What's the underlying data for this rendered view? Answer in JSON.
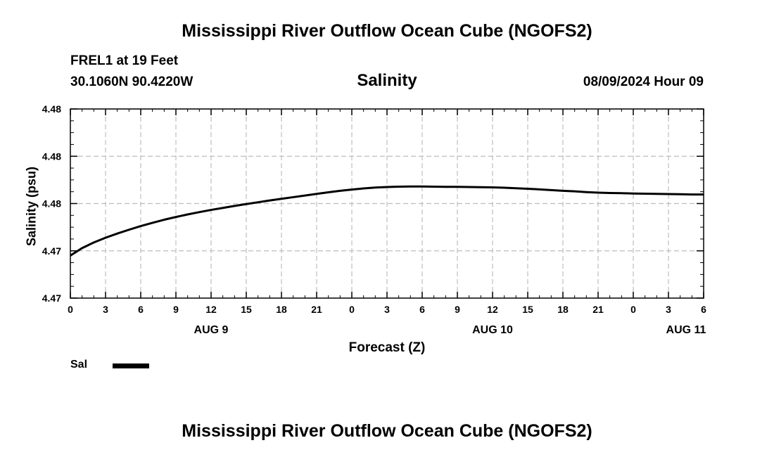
{
  "header": {
    "title_top": "Mississippi River Outflow Ocean Cube (NGOFS2)",
    "title_bottom": "Mississippi River Outflow Ocean Cube (NGOFS2)",
    "station": "FREL1 at 19 Feet",
    "coords": "30.1060N  90.4220W",
    "date": "08/09/2024 Hour 09"
  },
  "legend": {
    "label": "Sal",
    "color": "#000000"
  },
  "chart_data": {
    "type": "line",
    "title": "Salinity",
    "xlabel": "Forecast (Z)",
    "ylabel": "Salinity (psu)",
    "x_range_hours": [
      0,
      54
    ],
    "x_ticks": [
      {
        "hour": 0,
        "label": "0"
      },
      {
        "hour": 3,
        "label": "3"
      },
      {
        "hour": 6,
        "label": "6"
      },
      {
        "hour": 9,
        "label": "9"
      },
      {
        "hour": 12,
        "label": "12"
      },
      {
        "hour": 15,
        "label": "15"
      },
      {
        "hour": 18,
        "label": "18"
      },
      {
        "hour": 21,
        "label": "21"
      },
      {
        "hour": 24,
        "label": "0"
      },
      {
        "hour": 27,
        "label": "3"
      },
      {
        "hour": 30,
        "label": "6"
      },
      {
        "hour": 33,
        "label": "9"
      },
      {
        "hour": 36,
        "label": "12"
      },
      {
        "hour": 39,
        "label": "15"
      },
      {
        "hour": 42,
        "label": "18"
      },
      {
        "hour": 45,
        "label": "21"
      },
      {
        "hour": 48,
        "label": "0"
      },
      {
        "hour": 51,
        "label": "3"
      },
      {
        "hour": 54,
        "label": "6"
      }
    ],
    "date_labels": [
      {
        "hour": 12,
        "label": "AUG 9"
      },
      {
        "hour": 36,
        "label": "AUG 10"
      },
      {
        "hour": 52.5,
        "label": "AUG 11"
      }
    ],
    "ylim": [
      4.47,
      4.4804
    ],
    "y_ticks": [
      {
        "value": 4.47,
        "label": "4.47"
      },
      {
        "value": 4.4726,
        "label": "4.47"
      },
      {
        "value": 4.4752,
        "label": "4.48"
      },
      {
        "value": 4.4778,
        "label": "4.48"
      },
      {
        "value": 4.4804,
        "label": "4.48"
      }
    ],
    "grid": true,
    "legend_position": "bottom-left",
    "series": [
      {
        "name": "Sal",
        "x": [
          0,
          1,
          2,
          3,
          4,
          5,
          6,
          7,
          8,
          9,
          10,
          11,
          12,
          13,
          14,
          15,
          16,
          17,
          18,
          19,
          20,
          21,
          22,
          23,
          24,
          25,
          26,
          27,
          28,
          29,
          30,
          31,
          32,
          33,
          34,
          35,
          36,
          37,
          38,
          39,
          40,
          41,
          42,
          43,
          44,
          45,
          46,
          47,
          48,
          49,
          50,
          51,
          52,
          53,
          54
        ],
        "y": [
          4.47234,
          4.47275,
          4.47306,
          4.47332,
          4.47355,
          4.47376,
          4.47396,
          4.47414,
          4.47431,
          4.47446,
          4.4746,
          4.47473,
          4.47485,
          4.47496,
          4.47507,
          4.47517,
          4.47527,
          4.47537,
          4.47546,
          4.47555,
          4.47564,
          4.47573,
          4.47582,
          4.4759,
          4.47597,
          4.47603,
          4.47608,
          4.47611,
          4.47613,
          4.47614,
          4.47614,
          4.47613,
          4.47612,
          4.47612,
          4.47611,
          4.4761,
          4.47609,
          4.47607,
          4.47604,
          4.47601,
          4.47598,
          4.47594,
          4.4759,
          4.47587,
          4.47583,
          4.4758,
          4.47578,
          4.47577,
          4.47575,
          4.47574,
          4.47573,
          4.47572,
          4.47571,
          4.4757,
          4.4757
        ]
      }
    ]
  }
}
